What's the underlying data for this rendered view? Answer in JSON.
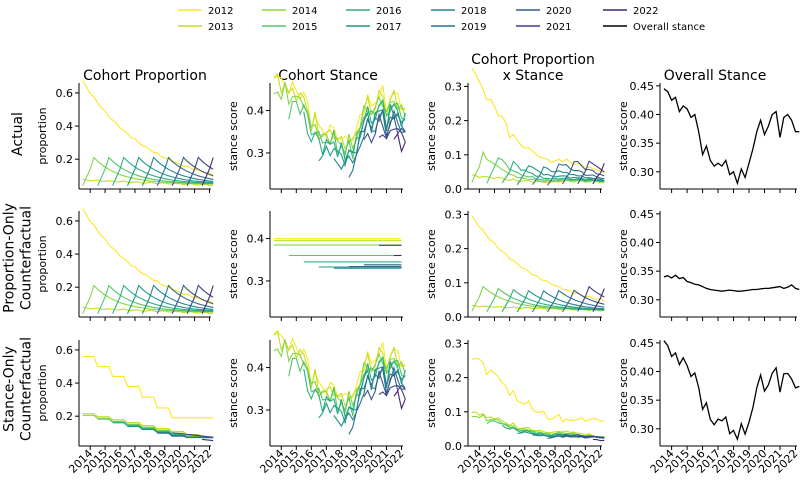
{
  "legend": {
    "entries": [
      {
        "label": "2012",
        "color": "#fde725"
      },
      {
        "label": "2013",
        "color": "#c2df23"
      },
      {
        "label": "2014",
        "color": "#86d549"
      },
      {
        "label": "2015",
        "color": "#52c569"
      },
      {
        "label": "2016",
        "color": "#2ab07f"
      },
      {
        "label": "2017",
        "color": "#1e9b8a"
      },
      {
        "label": "2018",
        "color": "#25858e"
      },
      {
        "label": "2019",
        "color": "#2d708e"
      },
      {
        "label": "2020",
        "color": "#38588c"
      },
      {
        "label": "2021",
        "color": "#433e85"
      },
      {
        "label": "2022",
        "color": "#482173"
      },
      {
        "label": "Overall stance",
        "color": "#000000"
      }
    ]
  },
  "column_titles": [
    "Cohort Proportion",
    "Cohort Stance",
    "Cohort Proportion",
    "x Stance",
    "Overall Stance"
  ],
  "row_labels": [
    {
      "lines": [
        "Actual"
      ]
    },
    {
      "lines": [
        "Proportion-Only",
        "Counterfactual"
      ]
    },
    {
      "lines": [
        "Stance-Only",
        "Counterfactual"
      ]
    }
  ],
  "ylabels": {
    "proportion": "proportion",
    "stance": "stance score"
  },
  "x_tick_labels": [
    "2014",
    "2015",
    "2016",
    "2017",
    "2018",
    "2019",
    "2020",
    "2021",
    "2022"
  ],
  "chart_data": [
    {
      "type": "line",
      "title": "Cohort Proportion",
      "row": "Actual",
      "ylabel": "proportion",
      "ylim": [
        0.02,
        0.66
      ],
      "yticks": [
        "0.2",
        "0.4",
        "0.6"
      ],
      "x_range": [
        2013.2,
        2022.1
      ],
      "description_series": "cohort proportions over time; 2012 cohort decays from 0.65 to 0.10; each new cohort starts near 0.05, peaks around 0.2 one year later and decays"
    },
    {
      "type": "line",
      "title": "Cohort Stance",
      "row": "Actual",
      "ylabel": "stance score",
      "ylim": [
        0.215,
        0.465
      ],
      "yticks": [
        "0.3",
        "0.4"
      ]
    },
    {
      "type": "line",
      "title": "Cohort Proportion x Stance",
      "row": "Actual",
      "ylabel": "stance score",
      "ylim": [
        0,
        0.31
      ],
      "yticks": [
        "0.0",
        "0.1",
        "0.2",
        "0.3"
      ]
    },
    {
      "type": "line",
      "title": "Overall Stance",
      "row": "Actual",
      "ylabel": "stance score",
      "ylim": [
        0.27,
        0.455
      ],
      "yticks": [
        "0.30",
        "0.35",
        "0.40",
        "0.45"
      ]
    },
    {
      "type": "line",
      "title": "Cohort Proportion",
      "row": "Proportion-Only Counterfactual",
      "ylabel": "proportion",
      "ylim": [
        0.02,
        0.66
      ],
      "yticks": [
        "0.2",
        "0.4",
        "0.6"
      ]
    },
    {
      "type": "line",
      "title": "Cohort Stance",
      "row": "Proportion-Only Counterfactual",
      "ylabel": "stance score",
      "ylim": [
        0.215,
        0.465
      ],
      "yticks": [
        "0.3",
        "0.4"
      ],
      "constant_levels": [
        0.4,
        0.395,
        0.385,
        0.36,
        0.345,
        0.333,
        0.33,
        0.334,
        0.338,
        0.384,
        0.36
      ]
    },
    {
      "type": "line",
      "title": "Cohort Proportion x Stance",
      "row": "Proportion-Only Counterfactual",
      "ylabel": "stance score",
      "ylim": [
        0,
        0.31
      ],
      "yticks": [
        "0.0",
        "0.1",
        "0.2",
        "0.3"
      ]
    },
    {
      "type": "line",
      "title": "Overall Stance",
      "row": "Proportion-Only Counterfactual",
      "ylabel": "stance score",
      "ylim": [
        0.27,
        0.455
      ],
      "yticks": [
        "0.30",
        "0.35",
        "0.40",
        "0.45"
      ],
      "values": [
        0.34,
        0.342,
        0.338,
        0.343,
        0.337,
        0.339,
        0.332,
        0.33,
        0.327,
        0.326,
        0.323,
        0.32,
        0.318,
        0.317,
        0.316,
        0.315,
        0.316,
        0.317,
        0.316,
        0.315,
        0.315,
        0.316,
        0.317,
        0.318,
        0.318,
        0.319,
        0.32,
        0.32,
        0.321,
        0.322,
        0.323,
        0.32,
        0.322,
        0.326,
        0.32,
        0.318
      ]
    },
    {
      "type": "line",
      "title": "Cohort Proportion",
      "row": "Stance-Only Counterfactual",
      "ylabel": "proportion",
      "ylim": [
        0.02,
        0.66
      ],
      "yticks": [
        "0.2",
        "0.4",
        "0.6"
      ]
    },
    {
      "type": "line",
      "title": "Cohort Stance",
      "row": "Stance-Only Counterfactual",
      "ylabel": "stance score",
      "ylim": [
        0.215,
        0.465
      ],
      "yticks": [
        "0.3",
        "0.4"
      ]
    },
    {
      "type": "line",
      "title": "Cohort Proportion x Stance",
      "row": "Stance-Only Counterfactual",
      "ylabel": "stance score",
      "ylim": [
        0,
        0.31
      ],
      "yticks": [
        "0.0",
        "0.1",
        "0.2",
        "0.3"
      ]
    },
    {
      "type": "line",
      "title": "Overall Stance",
      "row": "Stance-Only Counterfactual",
      "ylabel": "stance score",
      "ylim": [
        0.27,
        0.455
      ],
      "yticks": [
        "0.30",
        "0.35",
        "0.40",
        "0.45"
      ]
    }
  ]
}
